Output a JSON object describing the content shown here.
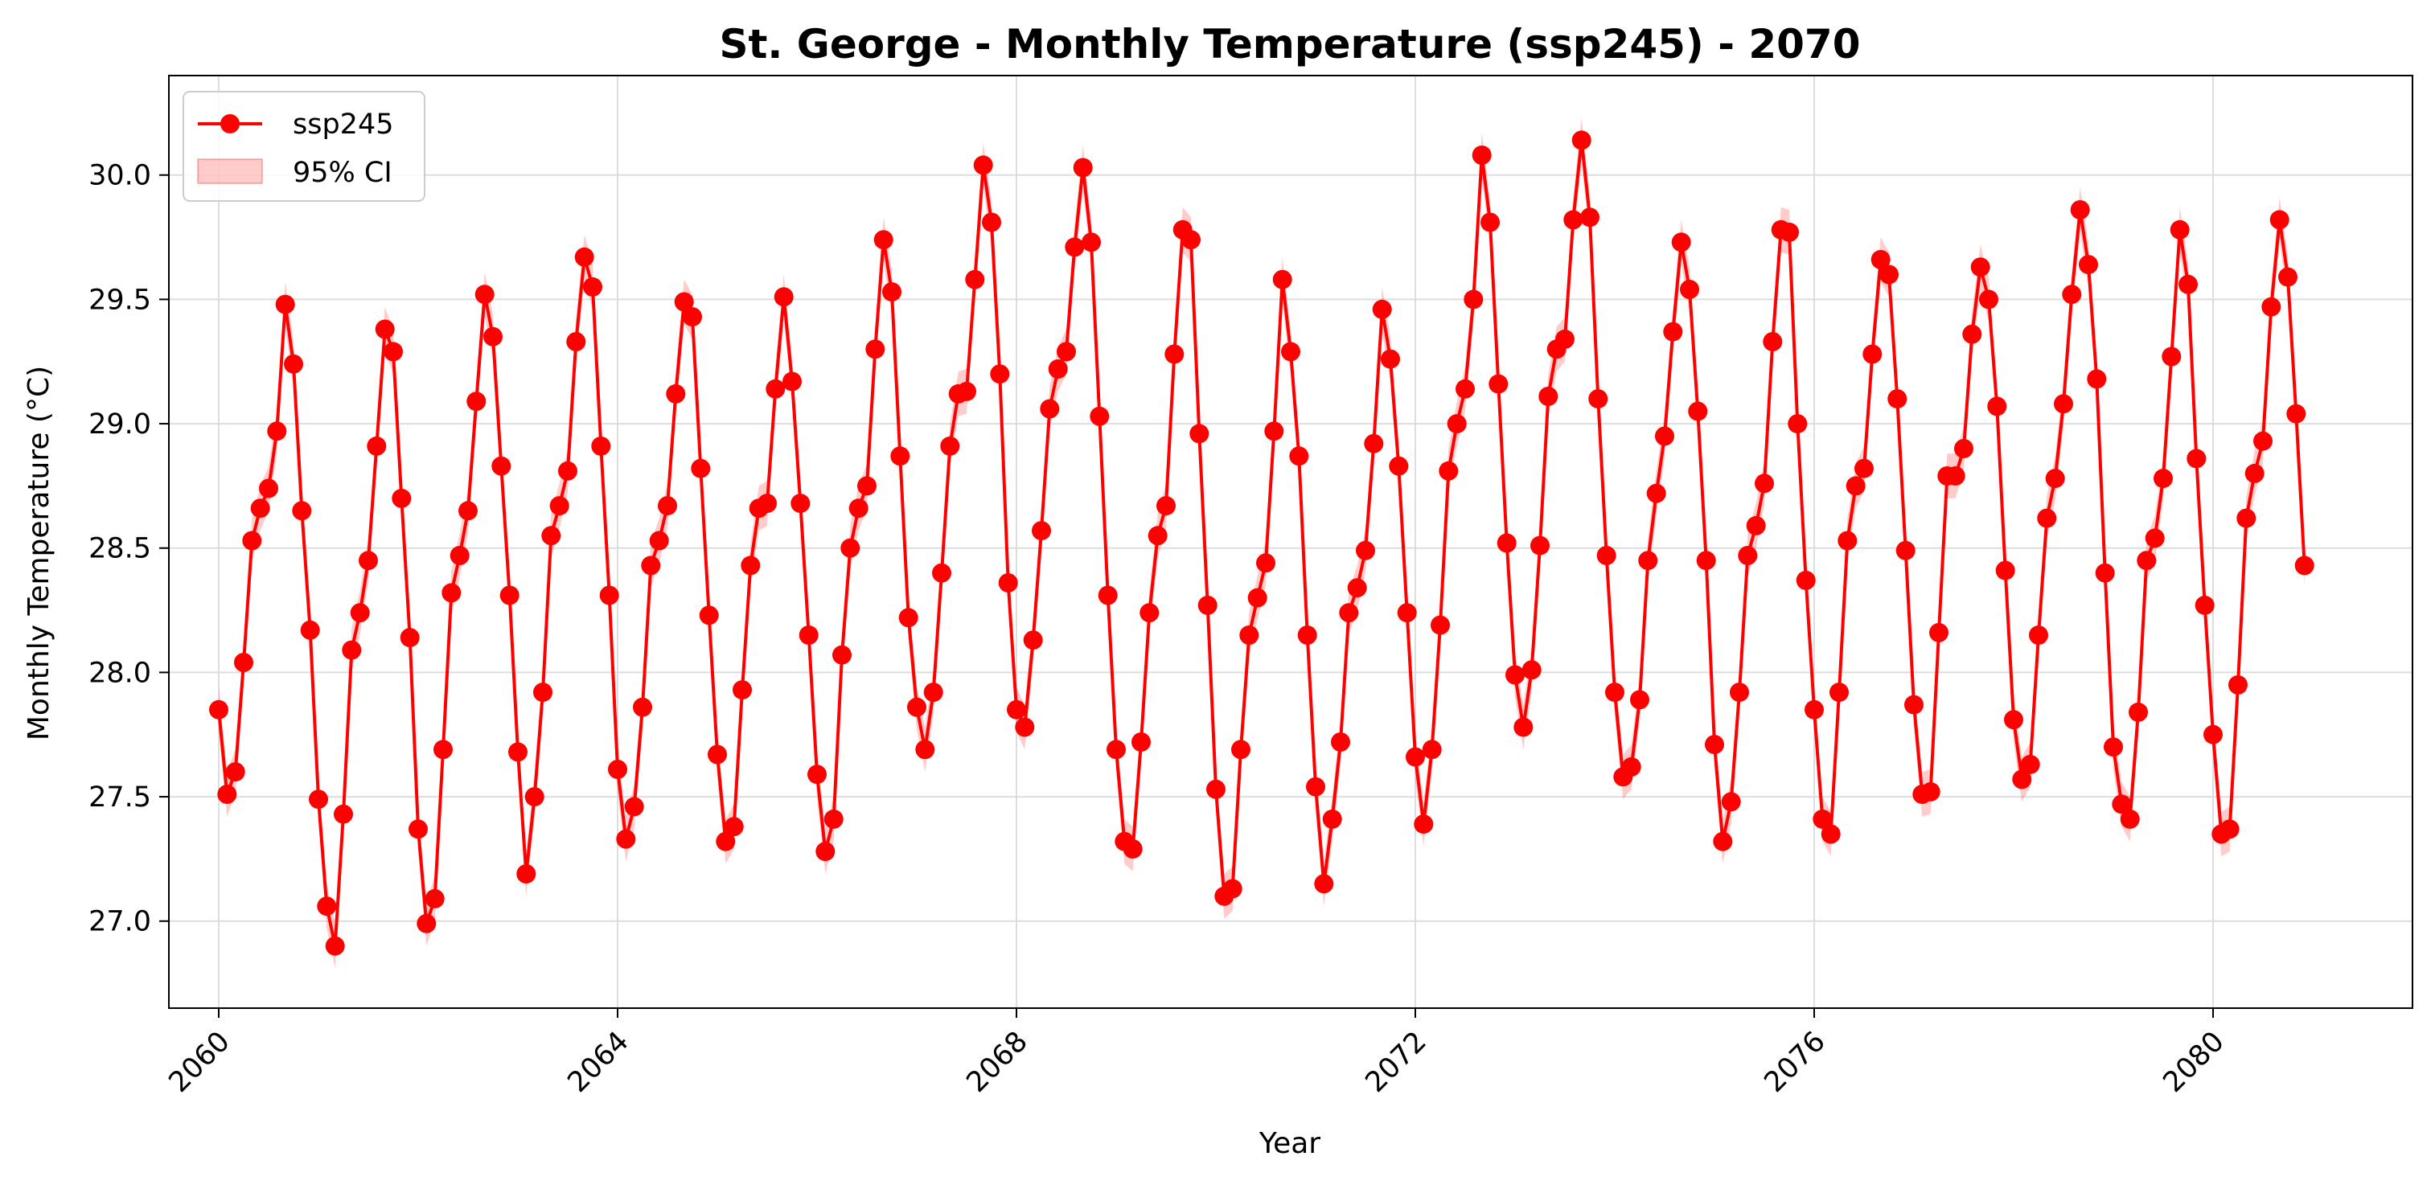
{
  "chart_data": {
    "type": "line",
    "title": "St. George - Monthly Temperature (ssp245) - 2070",
    "xlabel": "Year",
    "ylabel": "Monthly Temperature (°C)",
    "xlim": [
      2059.5,
      2082.0
    ],
    "ylim": [
      26.65,
      30.4
    ],
    "x_ticks": [
      2060,
      2064,
      2068,
      2072,
      2076,
      2080
    ],
    "y_ticks": [
      27.0,
      27.5,
      28.0,
      28.5,
      29.0,
      29.5,
      30.0
    ],
    "grid": true,
    "legend_position": "top-left",
    "ci_halfwidth": 0.09,
    "series": [
      {
        "name": "ssp245",
        "color": "#ff0000",
        "ci_label": "95% CI",
        "ci_color": "#ffb3b3",
        "x_start": "2060-01",
        "frequency": "monthly",
        "values": [
          27.85,
          27.51,
          27.6,
          28.04,
          28.53,
          28.66,
          28.74,
          28.97,
          29.48,
          29.24,
          28.65,
          28.17,
          27.49,
          27.06,
          26.9,
          27.43,
          28.09,
          28.24,
          28.45,
          28.91,
          29.38,
          29.29,
          28.7,
          28.14,
          27.37,
          26.99,
          27.09,
          27.69,
          28.32,
          28.47,
          28.65,
          29.09,
          29.52,
          29.35,
          28.83,
          28.31,
          27.68,
          27.19,
          27.5,
          27.92,
          28.55,
          28.67,
          28.81,
          29.33,
          29.67,
          29.55,
          28.91,
          28.31,
          27.61,
          27.33,
          27.46,
          27.86,
          28.43,
          28.53,
          28.67,
          29.12,
          29.49,
          29.43,
          28.82,
          28.23,
          27.67,
          27.32,
          27.38,
          27.93,
          28.43,
          28.66,
          28.68,
          29.14,
          29.51,
          29.17,
          28.68,
          28.15,
          27.59,
          27.28,
          27.41,
          28.07,
          28.5,
          28.66,
          28.75,
          29.3,
          29.74,
          29.53,
          28.87,
          28.22,
          27.86,
          27.69,
          27.92,
          28.4,
          28.91,
          29.12,
          29.13,
          29.58,
          30.04,
          29.81,
          29.2,
          28.36,
          27.85,
          27.78,
          28.13,
          28.57,
          29.06,
          29.22,
          29.29,
          29.71,
          30.03,
          29.73,
          29.03,
          28.31,
          27.69,
          27.32,
          27.29,
          27.72,
          28.24,
          28.55,
          28.67,
          29.28,
          29.78,
          29.74,
          28.96,
          28.27,
          27.53,
          27.1,
          27.13,
          27.69,
          28.15,
          28.3,
          28.44,
          28.97,
          29.58,
          29.29,
          28.87,
          28.15,
          27.54,
          27.15,
          27.41,
          27.72,
          28.24,
          28.34,
          28.49,
          28.92,
          29.46,
          29.26,
          28.83,
          28.24,
          27.66,
          27.39,
          27.69,
          28.19,
          28.81,
          29.0,
          29.14,
          29.5,
          30.08,
          29.81,
          29.16,
          28.52,
          27.99,
          27.78,
          28.01,
          28.51,
          29.11,
          29.3,
          29.34,
          29.82,
          30.14,
          29.83,
          29.1,
          28.47,
          27.92,
          27.58,
          27.62,
          27.89,
          28.45,
          28.72,
          28.95,
          29.37,
          29.73,
          29.54,
          29.05,
          28.45,
          27.71,
          27.32,
          27.48,
          27.92,
          28.47,
          28.59,
          28.76,
          29.33,
          29.78,
          29.77,
          29.0,
          28.37,
          27.85,
          27.41,
          27.35,
          27.92,
          28.53,
          28.75,
          28.82,
          29.28,
          29.66,
          29.6,
          29.1,
          28.49,
          27.87,
          27.51,
          27.52,
          28.16,
          28.79,
          28.79,
          28.9,
          29.36,
          29.63,
          29.5,
          29.07,
          28.41,
          27.81,
          27.57,
          27.63,
          28.15,
          28.62,
          28.78,
          29.08,
          29.52,
          29.86,
          29.64,
          29.18,
          28.4,
          27.7,
          27.47,
          27.41,
          27.84,
          28.45,
          28.54,
          28.78,
          29.27,
          29.78,
          29.56,
          28.86,
          28.27,
          27.75,
          27.35,
          27.37,
          27.95,
          28.62,
          28.8,
          28.93,
          29.47,
          29.82,
          29.59,
          29.04,
          28.43
        ]
      }
    ]
  }
}
